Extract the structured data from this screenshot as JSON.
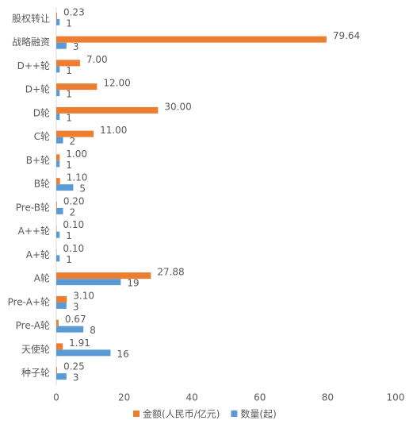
{
  "chart_data": {
    "type": "bar",
    "orientation": "horizontal",
    "categories": [
      "股权转让",
      "战略融资",
      "D++轮",
      "D+轮",
      "D轮",
      "C轮",
      "B+轮",
      "B轮",
      "Pre-B轮",
      "A++轮",
      "A+轮",
      "A轮",
      "Pre-A+轮",
      "Pre-A轮",
      "天使轮",
      "种子轮"
    ],
    "series": [
      {
        "name": "金额(人民币/亿元)",
        "color": "#ed7d31",
        "values": [
          0.23,
          79.64,
          7.0,
          12.0,
          30.0,
          11.0,
          1.0,
          1.1,
          0.2,
          0.1,
          0.1,
          27.88,
          3.1,
          0.67,
          1.91,
          0.25
        ],
        "value_labels": [
          "0.23",
          "79.64",
          "7.00",
          "12.00",
          "30.00",
          "11.00",
          "1.00",
          "1.10",
          "0.20",
          "0.10",
          "0.10",
          "27.88",
          "3.10",
          "0.67",
          "1.91",
          "0.25"
        ]
      },
      {
        "name": "数量(起)",
        "color": "#5b9bd5",
        "values": [
          1,
          3,
          1,
          1,
          1,
          2,
          1,
          5,
          2,
          1,
          1,
          19,
          3,
          8,
          16,
          3
        ]
      }
    ],
    "xlim": [
      0,
      100
    ],
    "xticks": [
      0,
      20,
      40,
      60,
      80,
      100
    ],
    "grid": false,
    "legend": "bottom"
  }
}
